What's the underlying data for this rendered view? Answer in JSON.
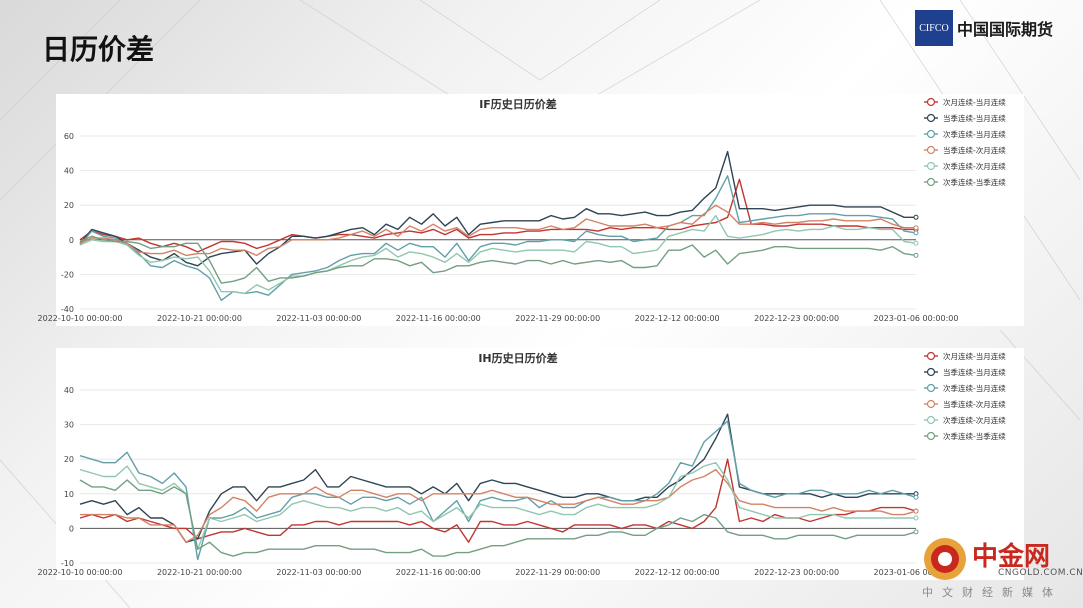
{
  "slide": {
    "title": "日历价差"
  },
  "logo": {
    "mark": "CIFCO",
    "name": "中国国际期货"
  },
  "watermark": {
    "name": "中金网",
    "url": "CNGOLD.COM.CN",
    "subtitle": "中文财经新媒体"
  },
  "x_ticks": [
    "2022-10-10 00:00:00",
    "2022-10-21 00:00:00",
    "2022-11-03 00:00:00",
    "2022-11-16 00:00:00",
    "2022-11-29 00:00:00",
    "2022-12-12 00:00:00",
    "2022-12-23 00:00:00",
    "2023-01-06 00:00:00"
  ],
  "colors": [
    "#c23531",
    "#2f4554",
    "#61a0a8",
    "#d48265",
    "#91c7ae",
    "#749f83"
  ],
  "chart_data": [
    {
      "type": "line",
      "title": "IF历史日历价差",
      "ylim": [
        -40,
        60
      ],
      "yticks": [
        -40,
        -20,
        0,
        20,
        40,
        60
      ],
      "grid": true,
      "legend": "top-right",
      "series": [
        {
          "name": "次月连续-当月连续",
          "values": [
            0,
            5,
            3,
            2,
            0,
            1,
            -2,
            -4,
            -2,
            -4,
            -7,
            -4,
            -1,
            -1,
            -2,
            -5,
            -3,
            0,
            3,
            2,
            1,
            2,
            3,
            3,
            2,
            1,
            3,
            4,
            5,
            4,
            6,
            3,
            6,
            1,
            3,
            3,
            4,
            4,
            5,
            5,
            6,
            6,
            6,
            6,
            5,
            7,
            6,
            7,
            7,
            7,
            6,
            6,
            8,
            9,
            10,
            13,
            35,
            9,
            9,
            8,
            8,
            9,
            9,
            9,
            8,
            8,
            8,
            7,
            7,
            7,
            6,
            6
          ]
        },
        {
          "name": "当季连续-当月连续",
          "values": [
            -2,
            6,
            4,
            2,
            -2,
            -6,
            -10,
            -12,
            -8,
            -13,
            -15,
            -10,
            -8,
            -7,
            -6,
            -14,
            -8,
            -4,
            2,
            2,
            1,
            2,
            4,
            6,
            7,
            3,
            9,
            6,
            13,
            9,
            15,
            8,
            13,
            3,
            9,
            10,
            11,
            11,
            11,
            11,
            14,
            12,
            13,
            18,
            15,
            15,
            14,
            15,
            16,
            14,
            14,
            16,
            17,
            24,
            30,
            51,
            18,
            18,
            18,
            17,
            18,
            19,
            20,
            20,
            20,
            19,
            19,
            19,
            19,
            16,
            13,
            13
          ]
        },
        {
          "name": "次季连续-当月连续",
          "values": [
            -3,
            5,
            2,
            1,
            -3,
            -8,
            -15,
            -16,
            -12,
            -15,
            -17,
            -22,
            -35,
            -30,
            -31,
            -30,
            -32,
            -26,
            -20,
            -19,
            -18,
            -16,
            -12,
            -9,
            -8,
            -8,
            -2,
            -6,
            -2,
            -4,
            -4,
            -10,
            -2,
            -12,
            -4,
            -2,
            -2,
            -3,
            -1,
            -1,
            0,
            0,
            -1,
            5,
            3,
            2,
            2,
            -1,
            0,
            1,
            8,
            10,
            14,
            14,
            24,
            37,
            10,
            11,
            12,
            13,
            14,
            14,
            15,
            15,
            15,
            14,
            14,
            14,
            13,
            12,
            5,
            4
          ]
        },
        {
          "name": "当季连续-次月连续",
          "values": [
            -2,
            1,
            1,
            0,
            -2,
            -7,
            -8,
            -8,
            -6,
            -9,
            -8,
            -8,
            -5,
            -6,
            -6,
            -9,
            -5,
            -4,
            0,
            0,
            0,
            0,
            1,
            3,
            5,
            2,
            6,
            2,
            8,
            5,
            9,
            5,
            7,
            2,
            6,
            7,
            7,
            7,
            6,
            6,
            8,
            6,
            7,
            12,
            10,
            8,
            8,
            8,
            9,
            7,
            8,
            10,
            9,
            15,
            20,
            16,
            9,
            9,
            10,
            9,
            10,
            10,
            11,
            11,
            12,
            11,
            11,
            11,
            12,
            9,
            7,
            7
          ]
        },
        {
          "name": "次季连续-次月连续",
          "values": [
            -3,
            0,
            -1,
            -1,
            -3,
            -9,
            -13,
            -12,
            -10,
            -11,
            -10,
            -18,
            -30,
            -30,
            -31,
            -26,
            -29,
            -25,
            -21,
            -21,
            -19,
            -18,
            -15,
            -12,
            -10,
            -9,
            -5,
            -10,
            -7,
            -8,
            -10,
            -13,
            -8,
            -13,
            -7,
            -5,
            -6,
            -7,
            -6,
            -6,
            -6,
            -6,
            -7,
            -1,
            -2,
            -4,
            -4,
            -8,
            -7,
            -6,
            2,
            4,
            6,
            5,
            14,
            2,
            1,
            2,
            3,
            5,
            6,
            5,
            6,
            6,
            8,
            6,
            6,
            7,
            6,
            6,
            -1,
            -2
          ]
        },
        {
          "name": "次季连续-当季连续",
          "values": [
            -1,
            2,
            0,
            -1,
            -1,
            -2,
            -5,
            -4,
            -4,
            -2,
            -2,
            -12,
            -25,
            -24,
            -22,
            -16,
            -24,
            -22,
            -22,
            -21,
            -19,
            -18,
            -16,
            -15,
            -15,
            -11,
            -11,
            -12,
            -15,
            -13,
            -19,
            -18,
            -15,
            -15,
            -13,
            -12,
            -13,
            -14,
            -12,
            -12,
            -14,
            -12,
            -14,
            -13,
            -12,
            -13,
            -12,
            -16,
            -16,
            -15,
            -6,
            -6,
            -3,
            -10,
            -6,
            -14,
            -8,
            -7,
            -6,
            -4,
            -4,
            -5,
            -5,
            -5,
            -5,
            -5,
            -5,
            -5,
            -6,
            -4,
            -8,
            -9
          ]
        }
      ]
    },
    {
      "type": "line",
      "title": "IH历史日历价差",
      "ylim": [
        -10,
        40
      ],
      "yticks": [
        -10,
        0,
        10,
        20,
        30,
        40
      ],
      "grid": true,
      "legend": "top-right",
      "series": [
        {
          "name": "次月连续-当月连续",
          "values": [
            3,
            4,
            3,
            4,
            2,
            3,
            2,
            1,
            0,
            0,
            -3,
            -2,
            -1,
            -1,
            0,
            -1,
            -2,
            -2,
            1,
            1,
            2,
            2,
            1,
            2,
            2,
            2,
            2,
            2,
            1,
            2,
            0,
            -1,
            1,
            -4,
            2,
            2,
            1,
            1,
            2,
            1,
            0,
            -1,
            1,
            1,
            1,
            1,
            0,
            1,
            1,
            0,
            2,
            1,
            0,
            2,
            6,
            20,
            2,
            3,
            2,
            4,
            3,
            3,
            2,
            3,
            4,
            4,
            5,
            5,
            6,
            6,
            6,
            5
          ]
        },
        {
          "name": "当季连续-当月连续",
          "values": [
            7,
            8,
            7,
            8,
            4,
            6,
            3,
            3,
            1,
            -4,
            -3,
            5,
            10,
            12,
            12,
            8,
            12,
            12,
            13,
            14,
            17,
            12,
            12,
            15,
            14,
            13,
            12,
            12,
            12,
            10,
            12,
            10,
            13,
            8,
            13,
            14,
            13,
            13,
            12,
            11,
            10,
            9,
            9,
            10,
            10,
            9,
            8,
            8,
            9,
            9,
            12,
            14,
            17,
            20,
            26,
            33,
            12,
            11,
            10,
            10,
            10,
            10,
            10,
            9,
            10,
            9,
            9,
            10,
            10,
            10,
            10,
            10
          ]
        },
        {
          "name": "次季连续-当月连续",
          "values": [
            21,
            20,
            19,
            19,
            22,
            16,
            15,
            13,
            16,
            12,
            -9,
            3,
            3,
            4,
            6,
            3,
            4,
            5,
            9,
            10,
            10,
            9,
            9,
            7,
            9,
            9,
            8,
            9,
            7,
            9,
            2,
            5,
            8,
            2,
            8,
            9,
            8,
            8,
            9,
            6,
            8,
            6,
            6,
            8,
            9,
            9,
            8,
            8,
            8,
            10,
            13,
            19,
            18,
            25,
            28,
            31,
            13,
            11,
            10,
            9,
            10,
            10,
            11,
            11,
            10,
            10,
            10,
            11,
            10,
            11,
            10,
            9
          ]
        },
        {
          "name": "当季连续-次月连续",
          "values": [
            4,
            4,
            4,
            4,
            3,
            3,
            1,
            1,
            1,
            -4,
            -2,
            4,
            6,
            9,
            8,
            5,
            9,
            10,
            10,
            10,
            12,
            10,
            9,
            11,
            11,
            10,
            9,
            10,
            10,
            8,
            10,
            10,
            10,
            10,
            10,
            11,
            10,
            9,
            9,
            8,
            7,
            7,
            7,
            8,
            9,
            8,
            7,
            7,
            8,
            8,
            9,
            12,
            14,
            15,
            17,
            13,
            8,
            7,
            7,
            6,
            6,
            6,
            6,
            5,
            6,
            5,
            5,
            5,
            5,
            4,
            4,
            5
          ]
        },
        {
          "name": "次季连续-次月连续",
          "values": [
            17,
            16,
            15,
            15,
            18,
            13,
            12,
            11,
            13,
            10,
            -6,
            3,
            2,
            3,
            4,
            2,
            3,
            4,
            7,
            8,
            7,
            6,
            6,
            5,
            6,
            6,
            5,
            6,
            4,
            5,
            2,
            4,
            6,
            3,
            7,
            6,
            6,
            6,
            5,
            4,
            5,
            4,
            4,
            6,
            7,
            6,
            6,
            6,
            6,
            7,
            9,
            15,
            16,
            18,
            19,
            14,
            6,
            5,
            4,
            3,
            3,
            3,
            4,
            4,
            4,
            3,
            3,
            3,
            3,
            3,
            3,
            3
          ]
        },
        {
          "name": "次季连续-当季连续",
          "values": [
            14,
            12,
            12,
            11,
            14,
            11,
            11,
            10,
            12,
            10,
            -6,
            -4,
            -7,
            -8,
            -7,
            -7,
            -6,
            -6,
            -6,
            -6,
            -5,
            -5,
            -5,
            -6,
            -6,
            -6,
            -7,
            -7,
            -7,
            -6,
            -8,
            -8,
            -7,
            -7,
            -6,
            -5,
            -5,
            -4,
            -3,
            -3,
            -3,
            -3,
            -3,
            -2,
            -2,
            -1,
            -1,
            -2,
            -2,
            0,
            1,
            3,
            2,
            4,
            3,
            -1,
            -2,
            -2,
            -2,
            -3,
            -3,
            -2,
            -2,
            -2,
            -2,
            -3,
            -2,
            -2,
            -2,
            -2,
            -2,
            -1
          ]
        }
      ]
    }
  ]
}
